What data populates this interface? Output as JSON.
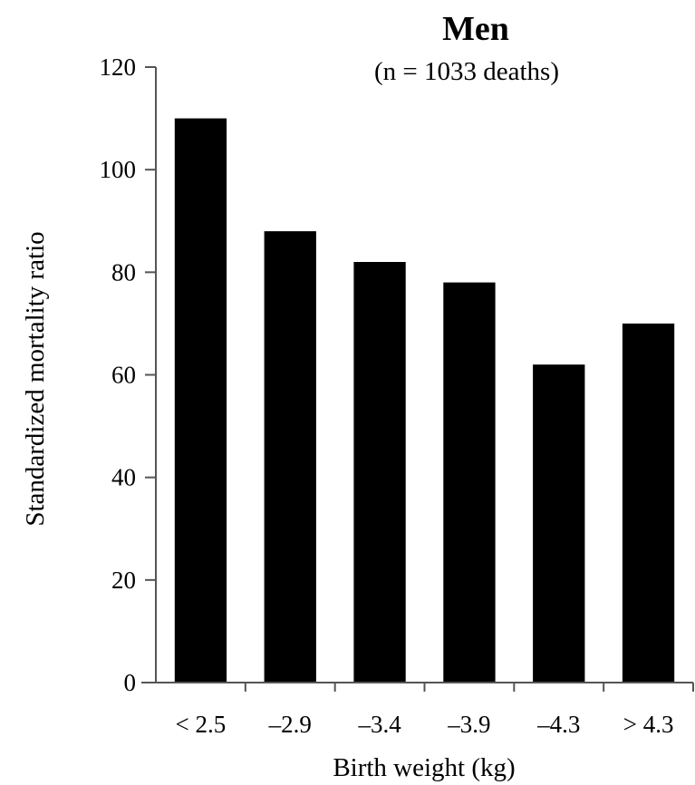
{
  "chart_data": {
    "type": "bar",
    "title": "Men",
    "subtitle": "(n = 1033 deaths)",
    "xlabel": "Birth weight (kg)",
    "ylabel": "Standardized mortality ratio",
    "categories": [
      "< 2.5",
      "–2.9",
      "–3.4",
      "–3.9",
      "–4.3",
      "> 4.3"
    ],
    "values": [
      110,
      88,
      82,
      78,
      62,
      70
    ],
    "ylim": [
      0,
      120
    ],
    "yticks": [
      0,
      20,
      40,
      60,
      80,
      100,
      120
    ],
    "grid": false,
    "bar_color": "#000000"
  }
}
